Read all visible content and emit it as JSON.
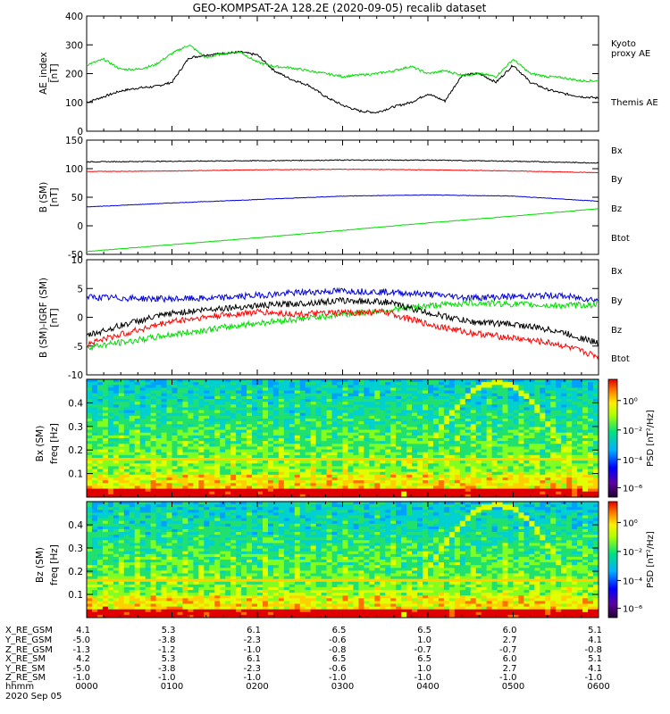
{
  "title": "GEO-KOMPSAT-2A 128.2E (2020-09-05) recalib dataset",
  "chart_data": [
    {
      "type": "line",
      "panel": "ae",
      "ylabel": "AE_index",
      "yunit": "[nT]",
      "ylim": [
        0,
        400
      ],
      "yticks": [
        "0",
        "100",
        "200",
        "300",
        "400"
      ],
      "x_hours": [
        0,
        0.2,
        0.4,
        0.6,
        0.8,
        1,
        1.2,
        1.4,
        1.6,
        1.8,
        2,
        2.2,
        2.4,
        2.6,
        2.8,
        3,
        3.2,
        3.4,
        3.6,
        3.8,
        4,
        4.2,
        4.4,
        4.6,
        4.8,
        5,
        5.2,
        5.4,
        5.6,
        5.8,
        6
      ],
      "series": [
        {
          "name": "Themis AE",
          "color": "#000000",
          "values": [
            100,
            120,
            140,
            150,
            155,
            170,
            255,
            265,
            270,
            275,
            265,
            210,
            180,
            160,
            120,
            90,
            70,
            65,
            85,
            100,
            130,
            105,
            195,
            200,
            170,
            230,
            170,
            145,
            130,
            120,
            115
          ]
        },
        {
          "name": "Kyoto proxy AE",
          "color": "#00dd00",
          "values": [
            230,
            250,
            215,
            215,
            230,
            270,
            300,
            255,
            270,
            275,
            240,
            225,
            220,
            210,
            200,
            190,
            195,
            200,
            210,
            225,
            200,
            210,
            195,
            200,
            190,
            250,
            200,
            190,
            185,
            175,
            175
          ]
        }
      ],
      "legend": [
        {
          "label": "Kyoto\nproxy AE",
          "color": "#00dd00"
        },
        {
          "label": "Themis AE",
          "color": "#000000"
        }
      ]
    },
    {
      "type": "line",
      "panel": "bsm",
      "ylabel": "B (SM)",
      "yunit": "[nT]",
      "ylim": [
        -50,
        150
      ],
      "yticks": [
        "-50",
        "0",
        "50",
        "100",
        "150"
      ],
      "x_hours": [
        0,
        1,
        2,
        3,
        4,
        5,
        6
      ],
      "series": [
        {
          "name": "Btot",
          "color": "#000000",
          "values": [
            112,
            113,
            114,
            115,
            115,
            113,
            110
          ]
        },
        {
          "name": "Bz",
          "color": "#ff0000",
          "values": [
            95,
            96,
            98,
            99,
            98,
            96,
            93
          ]
        },
        {
          "name": "Bx",
          "color": "#0000dd",
          "values": [
            33,
            40,
            46,
            52,
            54,
            52,
            43
          ]
        },
        {
          "name": "By",
          "color": "#00dd00",
          "values": [
            -45,
            -33,
            -21,
            -8,
            5,
            17,
            30
          ]
        }
      ],
      "legend": [
        {
          "label": "Bx",
          "color": "#0000dd"
        },
        {
          "label": "By",
          "color": "#00dd00"
        },
        {
          "label": "Bz",
          "color": "#ff0000"
        },
        {
          "label": "Btot",
          "color": "#000000"
        }
      ]
    },
    {
      "type": "line",
      "panel": "bigrf",
      "ylabel": "B (SM)-IGRF (SM)",
      "yunit": "[nT]",
      "ylim": [
        -10,
        10
      ],
      "yticks": [
        "-10",
        "-5",
        "0",
        "5",
        "10"
      ],
      "x_hours": [
        0,
        0.5,
        1,
        1.5,
        2,
        2.5,
        3,
        3.5,
        4,
        4.5,
        5,
        5.5,
        6
      ],
      "series": [
        {
          "name": "Bx",
          "color": "#0000dd",
          "values": [
            3.5,
            3.3,
            3.2,
            3.3,
            3.8,
            4.3,
            4.6,
            4.4,
            4.0,
            3.4,
            3.6,
            3.8,
            3.0
          ]
        },
        {
          "name": "By",
          "color": "#00dd00",
          "values": [
            -5.2,
            -4.2,
            -3.0,
            -2.0,
            -1.0,
            -0.3,
            0.5,
            1.2,
            2.0,
            2.5,
            2.3,
            2.0,
            2.2
          ]
        },
        {
          "name": "Btot",
          "color": "#000000",
          "values": [
            -3.2,
            -1.0,
            0.7,
            1.5,
            2.0,
            2.4,
            2.9,
            2.7,
            0.8,
            -0.8,
            -1.2,
            -2.3,
            -4.5
          ]
        },
        {
          "name": "Bz",
          "color": "#ff0000",
          "values": [
            -4.6,
            -2.6,
            -0.7,
            0.2,
            0.9,
            0.5,
            0.8,
            0.9,
            -1.2,
            -2.7,
            -3.6,
            -4.6,
            -6.8
          ]
        }
      ],
      "legend": [
        {
          "label": "Bx",
          "color": "#0000dd"
        },
        {
          "label": "By",
          "color": "#00dd00"
        },
        {
          "label": "Bz",
          "color": "#ff0000"
        },
        {
          "label": "Btot",
          "color": "#000000"
        }
      ]
    },
    {
      "type": "heatmap",
      "panel": "spec_bx",
      "ylabel_top": "Bx (SM)",
      "ylabel_bottom": "freq [Hz]",
      "ylim": [
        0,
        0.5
      ],
      "yticks": [
        "0.1",
        "0.2",
        "0.3",
        "0.4"
      ],
      "colorbar_label": "PSD [nT²/Hz]",
      "colorbar_ticks": [
        "10⁰",
        "10⁻²",
        "10⁻⁴",
        "10⁻⁶"
      ]
    },
    {
      "type": "heatmap",
      "panel": "spec_bz",
      "ylabel_top": "Bz (SM)",
      "ylabel_bottom": "freq [Hz]",
      "ylim": [
        0,
        0.5
      ],
      "yticks": [
        "0.1",
        "0.2",
        "0.3",
        "0.4"
      ],
      "colorbar_label": "PSD [nT²/Hz]",
      "colorbar_ticks": [
        "10⁰",
        "10⁻²",
        "10⁻⁴",
        "10⁻⁶"
      ]
    }
  ],
  "ephemeris": {
    "labels": [
      "X_RE_GSM",
      "Y_RE_GSM",
      "Z_RE_GSM",
      "X_RE_SM",
      "Y_RE_SM",
      "Z_RE_SM",
      "hhmm"
    ],
    "columns": [
      [
        "4.1",
        "-5.0",
        "-1.3",
        "4.2",
        "-5.0",
        "-1.0",
        "0000"
      ],
      [
        "5.3",
        "-3.8",
        "-1.2",
        "5.3",
        "-3.8",
        "-1.0",
        "0100"
      ],
      [
        "6.1",
        "-2.3",
        "-1.0",
        "6.1",
        "-2.3",
        "-1.0",
        "0200"
      ],
      [
        "6.5",
        "-0.6",
        "-0.8",
        "6.5",
        "-0.6",
        "-1.0",
        "0300"
      ],
      [
        "6.5",
        "1.0",
        "-0.7",
        "6.5",
        "1.0",
        "-1.0",
        "0400"
      ],
      [
        "6.0",
        "2.7",
        "-0.7",
        "6.0",
        "2.7",
        "-1.0",
        "0500"
      ],
      [
        "5.1",
        "4.1",
        "-0.8",
        "5.1",
        "4.1",
        "-1.0",
        "0600"
      ]
    ],
    "date": "2020 Sep 05"
  }
}
